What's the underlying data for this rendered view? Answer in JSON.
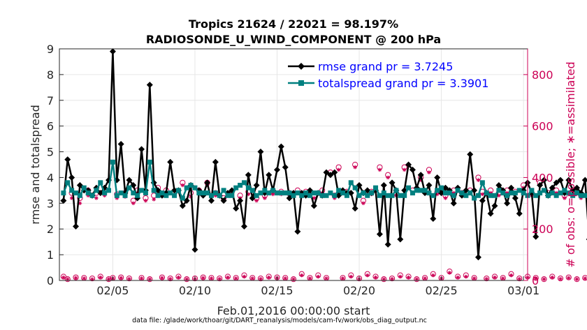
{
  "colors": {
    "rmse": "#000000",
    "spread": "#008080",
    "obs": "#cc0055",
    "legend_text": "#0000ff",
    "grid": "#e6e6e6"
  },
  "chart_data": {
    "type": "line",
    "title_line1": "Tropics 21624 / 22021 = 98.197%",
    "title_line2": "RADIOSONDE_U_WIND_COMPONENT @ 200 hPa",
    "xlabel": "Feb.01,2016 00:00:00 start",
    "ylabel_left": "rmse and totalspread",
    "ylabel_right": "# of obs: o=possible; ∗=assimilated",
    "footnote": "data file: /glade/work/thoar/git/DART_reanalysis/models/cam-fv/work/obs_diag_output.nc",
    "x_unit": "days since Feb.01,2016 00:00:00",
    "xlim": [
      0.75,
      29.25
    ],
    "ylim_left": [
      0,
      9
    ],
    "ylim_right": [
      0,
      900
    ],
    "x_ticks": [
      4,
      9,
      14,
      19,
      24,
      29
    ],
    "x_tick_labels": [
      "02/05",
      "02/10",
      "02/15",
      "02/20",
      "02/25",
      "03/01"
    ],
    "y_ticks_left": [
      0,
      1,
      2,
      3,
      4,
      5,
      6,
      7,
      8,
      9
    ],
    "y_tick_labels_left": [
      "0",
      "1",
      "2",
      "3",
      "4",
      "5",
      "6",
      "7",
      "8",
      "9"
    ],
    "y_ticks_right": [
      0,
      200,
      400,
      600,
      800
    ],
    "y_tick_labels_right": [
      "0",
      "200",
      "400",
      "600",
      "800"
    ],
    "grid": true,
    "legend_position": "top-right",
    "x_start": 1.0,
    "x_step": 0.25,
    "series": [
      {
        "name": "rmse grand pr = 3.7245",
        "axis": "left",
        "values": [
          3.1,
          4.7,
          4.0,
          2.1,
          3.7,
          3.5,
          3.5,
          3.3,
          3.6,
          3.4,
          3.6,
          3.9,
          8.9,
          3.9,
          5.3,
          3.4,
          3.9,
          3.7,
          3.2,
          5.1,
          3.5,
          7.6,
          3.8,
          3.5,
          3.3,
          3.4,
          4.6,
          3.5,
          3.5,
          2.9,
          3.1,
          3.7,
          1.2,
          3.5,
          3.3,
          3.8,
          3.1,
          4.6,
          3.3,
          3.1,
          3.4,
          3.5,
          2.8,
          3.1,
          2.1,
          4.1,
          3.2,
          3.7,
          5.0,
          3.4,
          4.1,
          3.5,
          4.3,
          5.2,
          4.4,
          3.2,
          3.4,
          1.9,
          3.4,
          3.3,
          3.5,
          2.9,
          3.4,
          3.3,
          4.2,
          4.1,
          4.2,
          3.3,
          3.5,
          3.4,
          3.4,
          2.8,
          3.7,
          3.4,
          3.5,
          3.4,
          3.5,
          1.8,
          3.7,
          1.4,
          3.8,
          3.5,
          1.6,
          3.5,
          4.5,
          4.3,
          3.6,
          4.1,
          3.4,
          3.7,
          2.4,
          4.0,
          3.4,
          3.6,
          3.5,
          3.0,
          3.6,
          3.3,
          3.5,
          4.9,
          3.5,
          0.9,
          3.1,
          3.4,
          2.6,
          2.9,
          3.7,
          3.5,
          3.0,
          3.6,
          3.2,
          2.6,
          3.5,
          3.8,
          3.4,
          1.7,
          3.7,
          3.9,
          3.3,
          3.6,
          3.8,
          3.9,
          3.4,
          3.9,
          3.5,
          3.6,
          3.4,
          3.9,
          1.6
        ]
      },
      {
        "name": "totalspread grand pr = 3.3901",
        "axis": "left",
        "values": [
          3.4,
          3.8,
          3.5,
          3.4,
          3.3,
          3.6,
          3.4,
          3.3,
          3.5,
          3.8,
          3.4,
          3.5,
          4.6,
          3.3,
          3.4,
          3.3,
          3.6,
          3.4,
          3.3,
          3.5,
          3.4,
          4.6,
          3.5,
          3.3,
          3.4,
          3.3,
          3.4,
          3.3,
          3.5,
          3.2,
          3.6,
          3.7,
          3.6,
          3.4,
          3.4,
          3.4,
          3.3,
          3.4,
          3.3,
          3.5,
          3.3,
          3.3,
          3.6,
          3.7,
          3.8,
          3.6,
          3.5,
          3.3,
          3.4,
          3.5,
          3.4,
          3.5,
          3.4,
          3.4,
          3.4,
          3.4,
          3.3,
          3.4,
          3.3,
          3.4,
          3.3,
          3.4,
          3.4,
          3.3,
          3.3,
          3.4,
          3.3,
          3.5,
          3.4,
          3.3,
          3.8,
          3.6,
          3.3,
          3.4,
          3.3,
          3.4,
          3.6,
          3.3,
          3.4,
          3.3,
          3.3,
          3.5,
          3.3,
          3.3,
          3.6,
          3.4,
          3.5,
          3.5,
          3.5,
          3.4,
          3.3,
          3.5,
          3.6,
          3.4,
          3.4,
          3.3,
          3.5,
          3.4,
          3.3,
          3.4,
          3.2,
          3.3,
          3.8,
          3.4,
          3.3,
          3.3,
          3.5,
          3.4,
          3.3,
          3.4,
          3.4,
          3.5,
          3.4,
          3.3,
          3.5,
          3.3,
          3.4,
          3.5,
          3.3,
          3.4,
          3.3,
          3.4,
          3.5,
          3.4,
          3.3,
          3.4,
          3.3,
          3.3,
          3.3
        ]
      },
      {
        "name": "obs possible",
        "axis": "right",
        "values": [
          15,
          5,
          340,
          12,
          320,
          10,
          350,
          8,
          340,
          15,
          345,
          5,
          10,
          335,
          12,
          340,
          8,
          310,
          350,
          10,
          320,
          5,
          330,
          360,
          12,
          350,
          8,
          340,
          15,
          380,
          5,
          340,
          8,
          350,
          12,
          380,
          10,
          340,
          8,
          320,
          15,
          345,
          10,
          330,
          20,
          345,
          10,
          320,
          8,
          330,
          15,
          345,
          12,
          345,
          10,
          340,
          5,
          350,
          25,
          345,
          10,
          330,
          20,
          350,
          10,
          420,
          330,
          440,
          10,
          345,
          20,
          450,
          8,
          310,
          25,
          345,
          15,
          440,
          5,
          410,
          8,
          340,
          20,
          440,
          15,
          350,
          5,
          400,
          10,
          430,
          25,
          345,
          10,
          330,
          35,
          350,
          15,
          340,
          20,
          350,
          10,
          400,
          345,
          8,
          350,
          15,
          340,
          10,
          350,
          25,
          345,
          8,
          370,
          15,
          340,
          10,
          380,
          5,
          340,
          15,
          350,
          8,
          330,
          12,
          345,
          5,
          330,
          10
        ]
      },
      {
        "name": "obs assimilated",
        "axis": "right",
        "values": [
          12,
          5,
          320,
          10,
          300,
          8,
          330,
          5,
          320,
          12,
          330,
          5,
          8,
          320,
          10,
          325,
          6,
          300,
          340,
          8,
          310,
          5,
          315,
          350,
          10,
          335,
          6,
          330,
          12,
          370,
          5,
          325,
          6,
          340,
          10,
          370,
          8,
          330,
          6,
          310,
          12,
          335,
          8,
          320,
          15,
          335,
          8,
          310,
          6,
          320,
          12,
          335,
          10,
          335,
          8,
          330,
          5,
          340,
          20,
          335,
          8,
          320,
          15,
          340,
          8,
          410,
          320,
          430,
          8,
          335,
          15,
          440,
          6,
          300,
          20,
          335,
          12,
          430,
          5,
          400,
          6,
          330,
          15,
          430,
          12,
          340,
          5,
          390,
          8,
          420,
          20,
          335,
          8,
          320,
          30,
          340,
          12,
          330,
          15,
          340,
          8,
          390,
          335,
          6,
          340,
          12,
          330,
          8,
          340,
          20,
          335,
          6,
          360,
          12,
          330,
          8,
          370,
          5,
          330,
          12,
          340,
          6,
          320,
          10,
          335,
          5,
          320,
          8
        ]
      }
    ]
  }
}
